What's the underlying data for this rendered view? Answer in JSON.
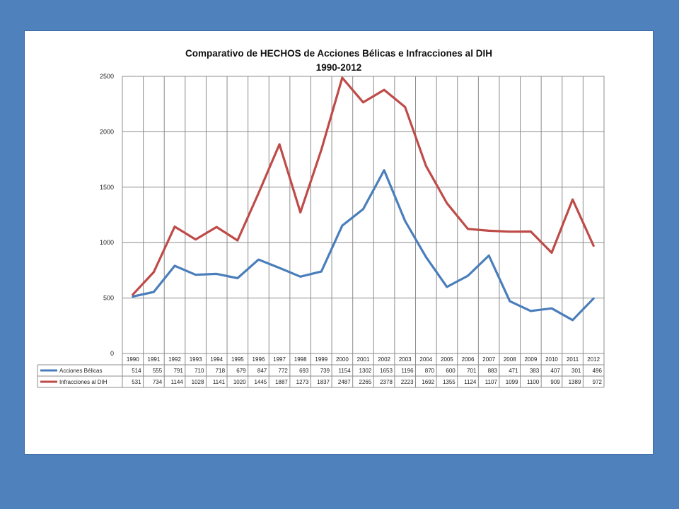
{
  "chart_data": {
    "type": "line",
    "title": "Comparativo de HECHOS de Acciones Bélicas e Infracciones al DIH",
    "subtitle": "1990-2012",
    "categories": [
      "1990",
      "1991",
      "1992",
      "1993",
      "1994",
      "1995",
      "1996",
      "1997",
      "1998",
      "1999",
      "2000",
      "2001",
      "2002",
      "2003",
      "2004",
      "2005",
      "2006",
      "2007",
      "2008",
      "2009",
      "2010",
      "2011",
      "2012"
    ],
    "series": [
      {
        "name": "Acciones Bélicas",
        "color": "#4a7ebb",
        "values": [
          514,
          555,
          791,
          710,
          718,
          679,
          847,
          772,
          693,
          739,
          1154,
          1302,
          1653,
          1196,
          870,
          600,
          701,
          883,
          471,
          383,
          407,
          301,
          496
        ]
      },
      {
        "name": "Infracciones al DIH",
        "color": "#be4b48",
        "values": [
          531,
          734,
          1144,
          1028,
          1141,
          1020,
          1445,
          1887,
          1273,
          1837,
          2487,
          2265,
          2378,
          2223,
          1692,
          1355,
          1124,
          1107,
          1099,
          1100,
          909,
          1389,
          972
        ]
      }
    ],
    "ylim": [
      0,
      2500
    ],
    "yticks": [
      0,
      500,
      1000,
      1500,
      2000,
      2500
    ],
    "grid": true,
    "legend": "data-table"
  }
}
